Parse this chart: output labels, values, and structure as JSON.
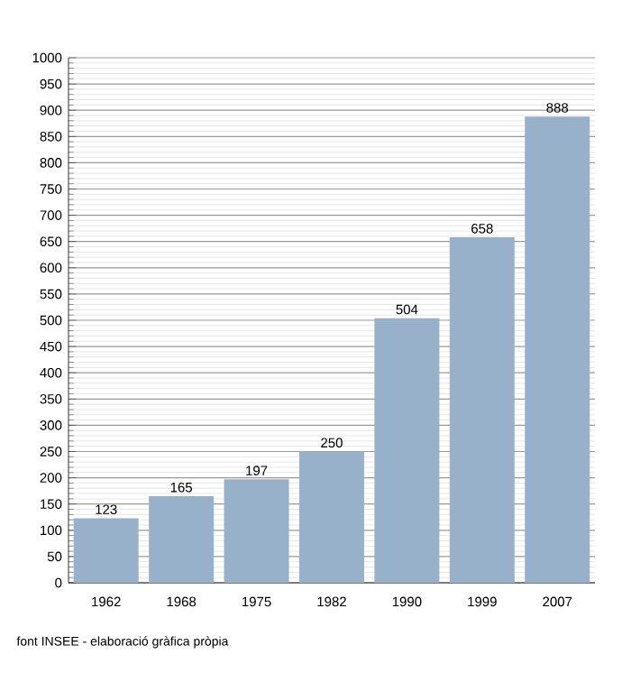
{
  "chart_data": {
    "type": "bar",
    "categories": [
      "1962",
      "1968",
      "1975",
      "1982",
      "1990",
      "1999",
      "2007"
    ],
    "values": [
      123,
      165,
      197,
      250,
      504,
      658,
      888
    ],
    "color": "#98b1cb",
    "data_labels": true,
    "ylim": [
      0,
      1000
    ],
    "yticks": [
      0,
      50,
      100,
      150,
      200,
      250,
      300,
      350,
      400,
      450,
      500,
      550,
      600,
      650,
      700,
      750,
      800,
      850,
      900,
      950,
      1000
    ],
    "grid": "y",
    "annotations": [
      "font INSEE - elaboració gràfica pròpia"
    ]
  }
}
